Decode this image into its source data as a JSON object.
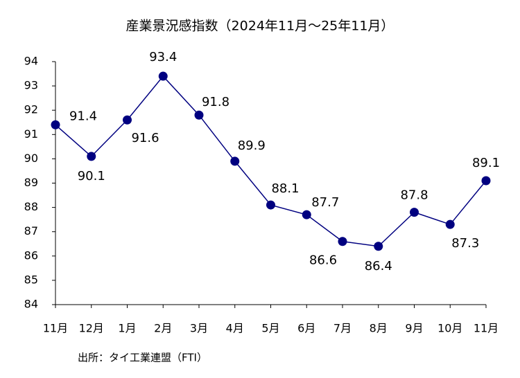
{
  "chart_data": {
    "type": "line",
    "title": "産業景況感指数（2024年11月～25年11月）",
    "categories": [
      "11月",
      "12月",
      "1月",
      "2月",
      "3月",
      "4月",
      "5月",
      "6月",
      "7月",
      "8月",
      "9月",
      "10月",
      "11月"
    ],
    "series": [
      {
        "name": "産業景況感指数",
        "color": "#000080",
        "values": [
          91.4,
          90.1,
          91.6,
          93.4,
          91.8,
          89.9,
          88.1,
          87.7,
          86.6,
          86.4,
          87.8,
          87.3,
          89.1
        ]
      }
    ],
    "ylim": [
      84,
      94
    ],
    "yticks": [
      84,
      85,
      86,
      87,
      88,
      89,
      90,
      91,
      92,
      93,
      94
    ],
    "source": "出所：タイ工業連盟（FTI）",
    "grid": false
  }
}
